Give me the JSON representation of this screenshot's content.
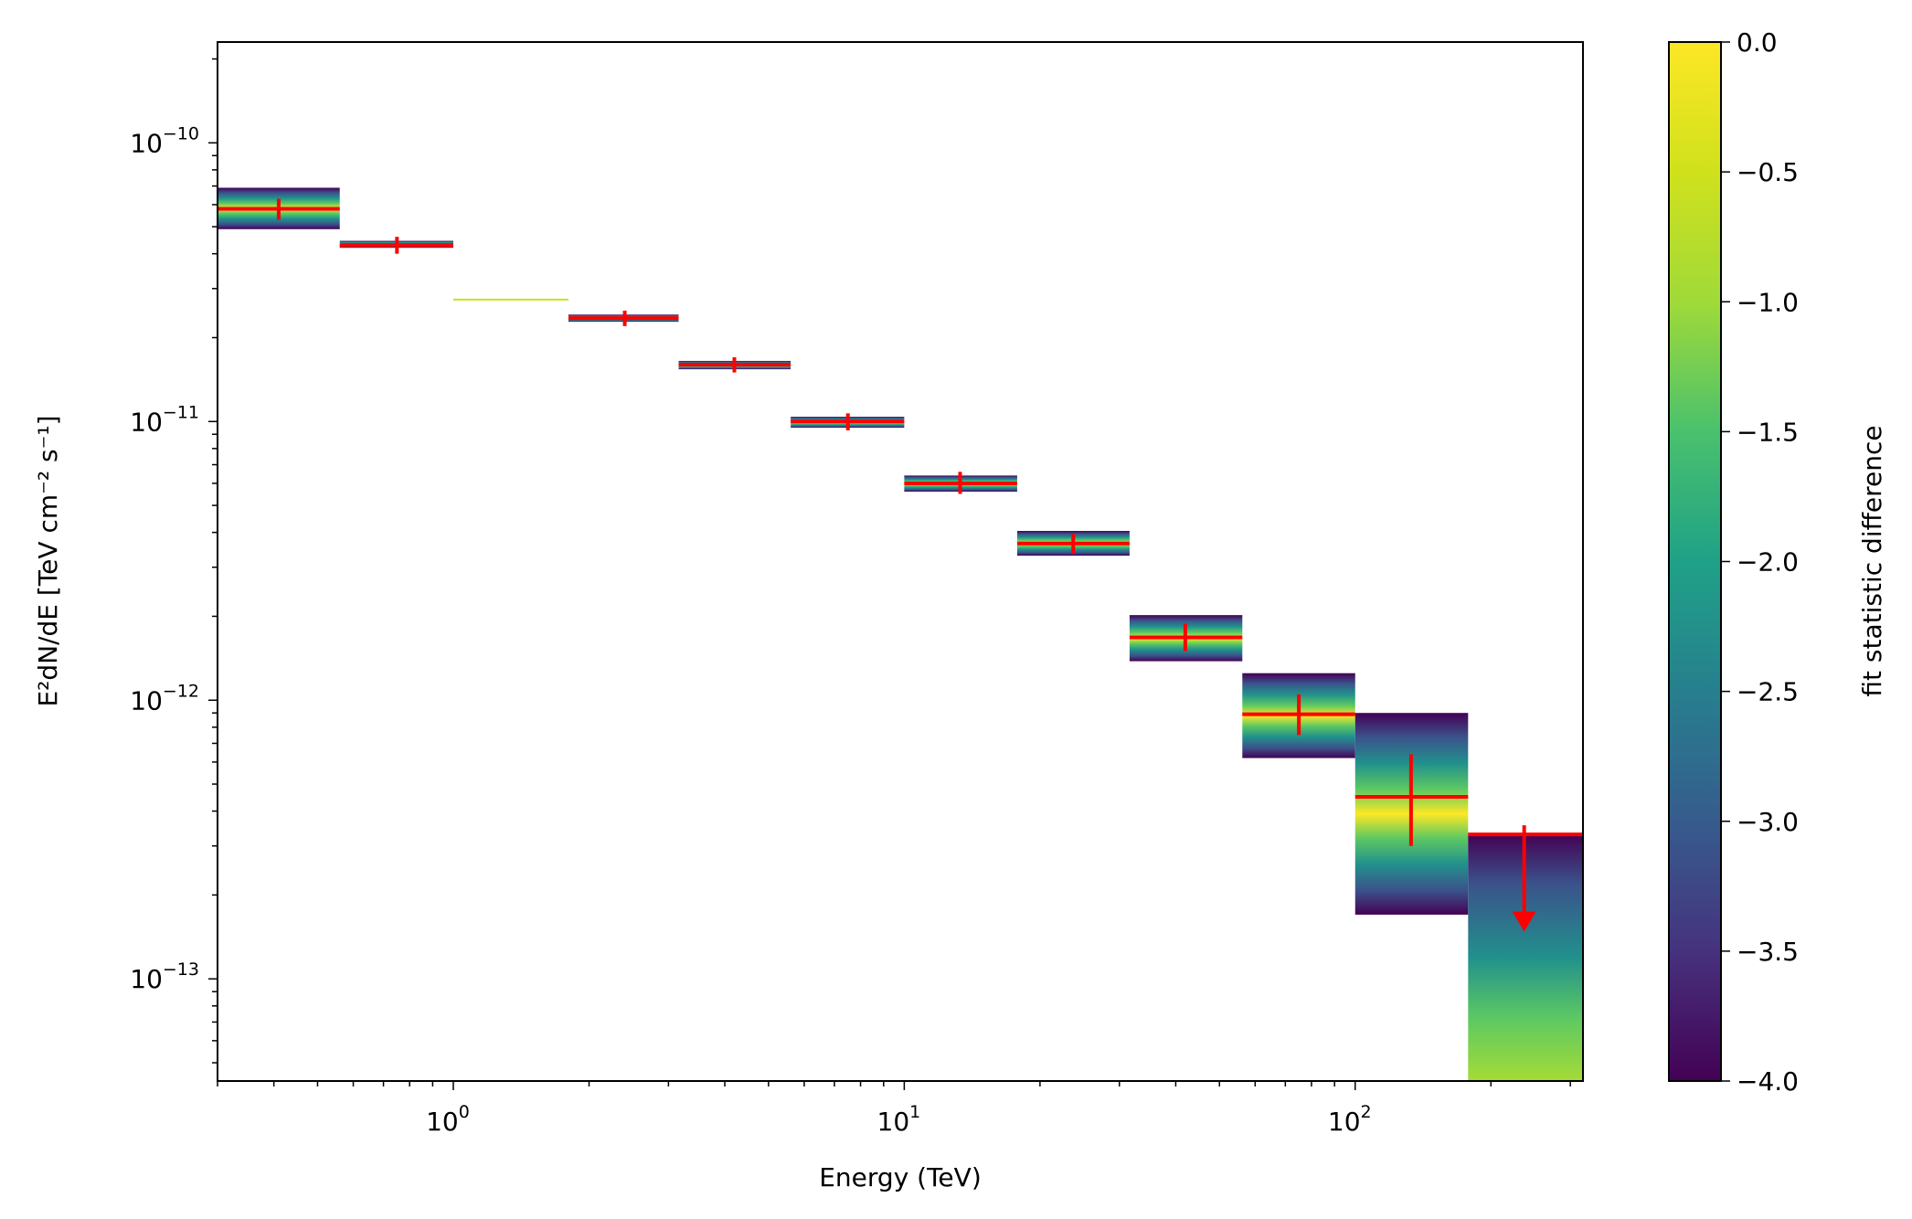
{
  "chart_data": {
    "type": "sed-profile",
    "xlabel": "Energy (TeV)",
    "ylabel": "E²dN/dE [TeV cm⁻² s⁻¹]",
    "xscale": "log",
    "yscale": "log",
    "xlim": [
      0.3,
      320
    ],
    "ylim": [
      4.3e-14,
      2.3e-10
    ],
    "x_ticks": [
      {
        "value": 1,
        "base": "10",
        "exp": "0"
      },
      {
        "value": 10,
        "base": "10",
        "exp": "1"
      },
      {
        "value": 100,
        "base": "10",
        "exp": "2"
      }
    ],
    "y_ticks": [
      {
        "value": 1e-10,
        "base": "10",
        "exp": "−10"
      },
      {
        "value": 1e-11,
        "base": "10",
        "exp": "−11"
      },
      {
        "value": 1e-12,
        "base": "10",
        "exp": "−12"
      },
      {
        "value": 1e-13,
        "base": "10",
        "exp": "−13"
      }
    ],
    "colorbar": {
      "label": "fit statistic difference",
      "range": [
        -4.0,
        0.0
      ],
      "ticks": [
        "0.0",
        "−0.5",
        "−1.0",
        "−1.5",
        "−2.0",
        "−2.5",
        "−3.0",
        "−3.5",
        "−4.0"
      ],
      "tick_values": [
        0.0,
        -0.5,
        -1.0,
        -1.5,
        -2.0,
        -2.5,
        -3.0,
        -3.5,
        -4.0
      ],
      "colormap": "viridis"
    },
    "points": [
      {
        "e_min": 0.3,
        "e_max": 0.56,
        "e_ref": 0.41,
        "flux": 5.8e-11,
        "err_lo": 5.3e-11,
        "err_hi": 6.3e-11,
        "profile_lo": 4.9e-11,
        "profile_hi": 6.9e-11
      },
      {
        "e_min": 0.56,
        "e_max": 1.0,
        "e_ref": 0.75,
        "flux": 4.3e-11,
        "err_lo": 4e-11,
        "err_hi": 4.6e-11,
        "profile_lo": 4.2e-11,
        "profile_hi": 4.45e-11
      },
      {
        "e_min": 1.0,
        "e_max": 1.8,
        "e_ref": null,
        "flux": null,
        "profile_lo": 2.72e-11,
        "profile_hi": 2.76e-11
      },
      {
        "e_min": 1.8,
        "e_max": 3.16,
        "e_ref": 2.4,
        "flux": 2.35e-11,
        "err_lo": 2.2e-11,
        "err_hi": 2.5e-11,
        "profile_lo": 2.28e-11,
        "profile_hi": 2.42e-11
      },
      {
        "e_min": 3.16,
        "e_max": 5.6,
        "e_ref": 4.2,
        "flux": 1.6e-11,
        "err_lo": 1.5e-11,
        "err_hi": 1.7e-11,
        "profile_lo": 1.54e-11,
        "profile_hi": 1.65e-11
      },
      {
        "e_min": 5.6,
        "e_max": 10.0,
        "e_ref": 7.5,
        "flux": 1e-11,
        "err_lo": 9.3e-12,
        "err_hi": 1.07e-11,
        "profile_lo": 9.5e-12,
        "profile_hi": 1.04e-11
      },
      {
        "e_min": 10.0,
        "e_max": 17.8,
        "e_ref": 13.3,
        "flux": 6e-12,
        "err_lo": 5.5e-12,
        "err_hi": 6.6e-12,
        "profile_lo": 5.6e-12,
        "profile_hi": 6.4e-12
      },
      {
        "e_min": 17.8,
        "e_max": 31.6,
        "e_ref": 23.7,
        "flux": 3.65e-12,
        "err_lo": 3.35e-12,
        "err_hi": 3.95e-12,
        "profile_lo": 3.3e-12,
        "profile_hi": 4.05e-12
      },
      {
        "e_min": 31.6,
        "e_max": 56.2,
        "e_ref": 42.0,
        "flux": 1.68e-12,
        "err_lo": 1.5e-12,
        "err_hi": 1.88e-12,
        "profile_lo": 1.38e-12,
        "profile_hi": 2.02e-12
      },
      {
        "e_min": 56.2,
        "e_max": 100.0,
        "e_ref": 75.0,
        "flux": 8.9e-13,
        "err_lo": 7.5e-13,
        "err_hi": 1.05e-12,
        "profile_lo": 6.2e-13,
        "profile_hi": 1.25e-12
      },
      {
        "e_min": 100.0,
        "e_max": 178.0,
        "e_ref": 133.0,
        "flux": 4.5e-13,
        "err_lo": 3e-13,
        "err_hi": 6.4e-13,
        "profile_lo": 1.7e-13,
        "profile_hi": 9e-13
      },
      {
        "e_min": 178.0,
        "e_max": 320.0,
        "e_ref": 237.0,
        "upper_limit": 3.3e-13,
        "arrow_to": 1.5e-13,
        "profile_lo": 4.3e-14,
        "profile_hi": 3.3e-13,
        "profile_bottom_value": -0.5
      }
    ]
  }
}
